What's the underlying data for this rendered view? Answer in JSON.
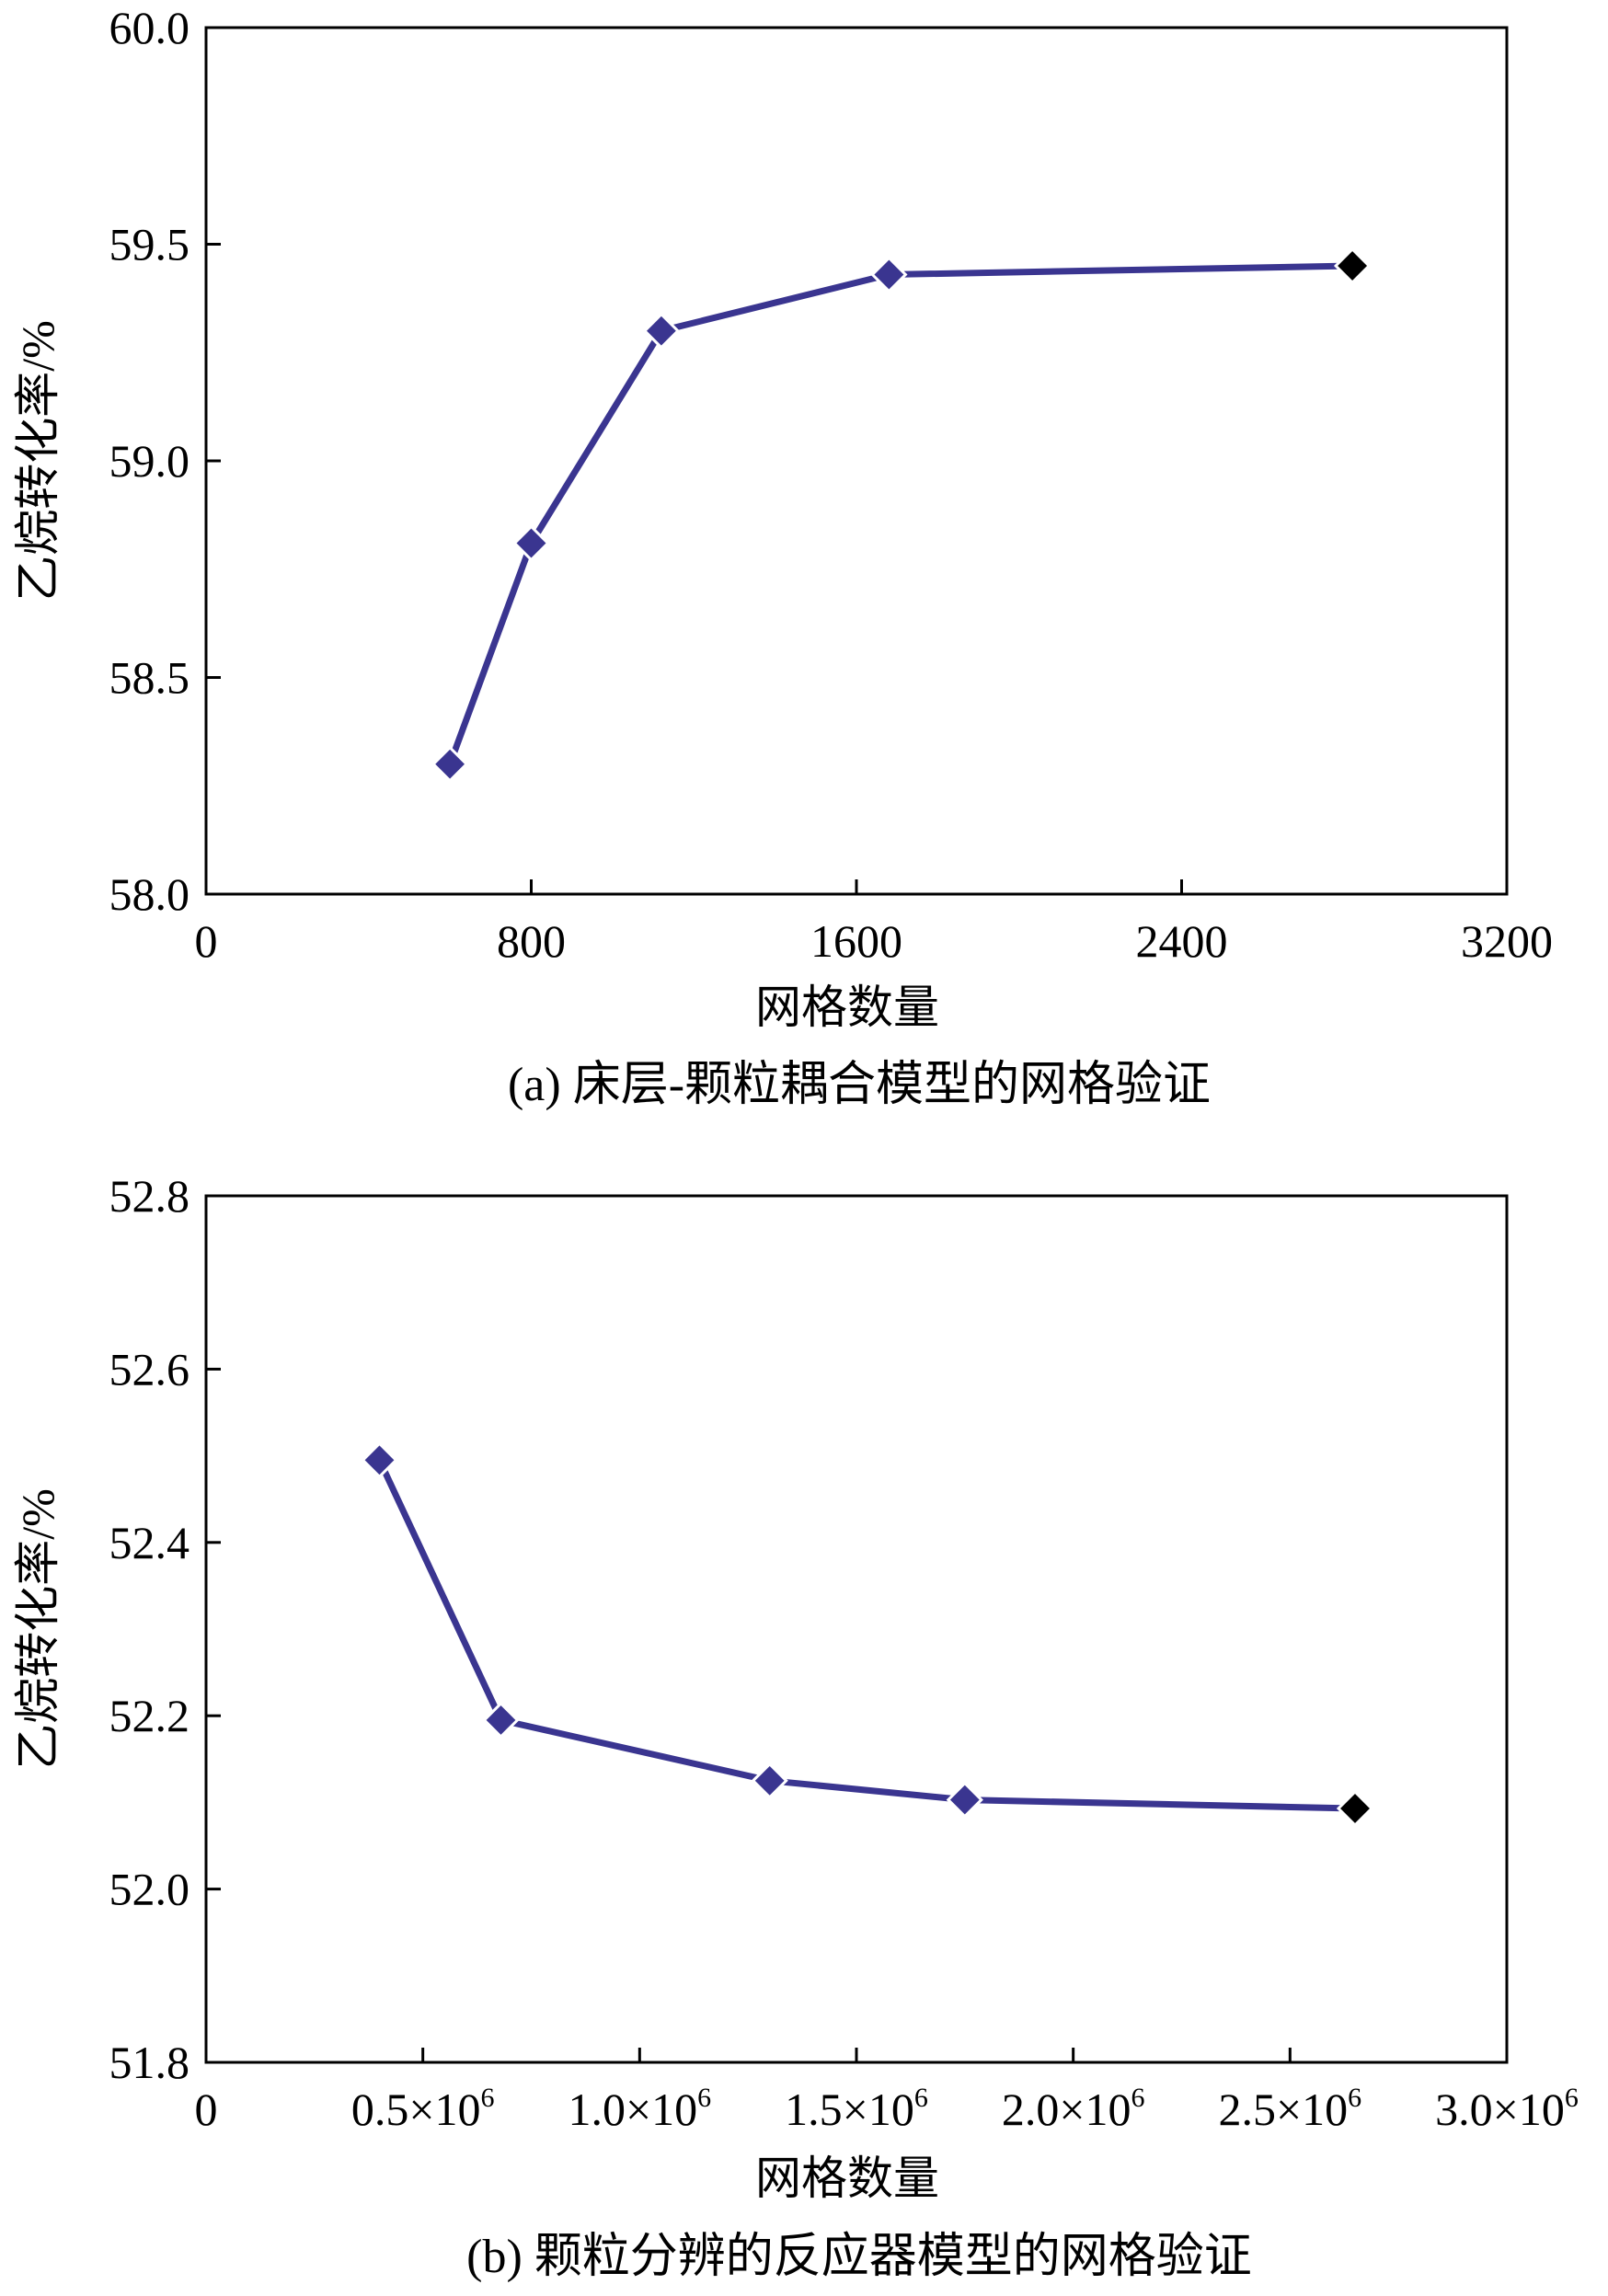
{
  "chart_data": [
    {
      "type": "line",
      "caption": "(a) 床层-颗粒耦合模型的网格验证",
      "title": "",
      "xlabel": "网格数量",
      "ylabel": "乙烷转化率/%",
      "xlim": [
        0,
        3200
      ],
      "ylim": [
        58.0,
        60.0
      ],
      "x_ticks": [
        0,
        800,
        1600,
        2400,
        3200
      ],
      "x_tick_labels": [
        {
          "base": "0",
          "sup": ""
        },
        {
          "base": "800",
          "sup": ""
        },
        {
          "base": "1600",
          "sup": ""
        },
        {
          "base": "2400",
          "sup": ""
        },
        {
          "base": "3200",
          "sup": ""
        }
      ],
      "y_ticks": [
        58.0,
        58.5,
        59.0,
        59.5,
        60.0
      ],
      "y_tick_labels": [
        "58.0",
        "58.5",
        "59.0",
        "59.5",
        "60.0"
      ],
      "grid": false,
      "series": [
        {
          "x": [
            600,
            800,
            1120,
            1680,
            2820
          ],
          "y": [
            58.3,
            58.81,
            59.3,
            59.43,
            59.45
          ],
          "color": "#3a3590",
          "marker": "diamond",
          "highlight_index": 4,
          "highlight_color": "#000000"
        }
      ]
    },
    {
      "type": "line",
      "caption": "(b) 颗粒分辨的反应器模型的网格验证",
      "title": "",
      "xlabel": "网格数量",
      "ylabel": "乙烷转化率/%",
      "xlim": [
        0,
        3000000
      ],
      "ylim": [
        51.8,
        52.8
      ],
      "x_ticks": [
        0,
        500000,
        1000000,
        1500000,
        2000000,
        2500000,
        3000000
      ],
      "x_tick_labels": [
        {
          "base": "0",
          "sup": ""
        },
        {
          "base": "0.5×10",
          "sup": "6"
        },
        {
          "base": "1.0×10",
          "sup": "6"
        },
        {
          "base": "1.5×10",
          "sup": "6"
        },
        {
          "base": "2.0×10",
          "sup": "6"
        },
        {
          "base": "2.5×10",
          "sup": "6"
        },
        {
          "base": "3.0×10",
          "sup": "6"
        }
      ],
      "y_ticks": [
        51.8,
        52.0,
        52.2,
        52.4,
        52.6,
        52.8
      ],
      "y_tick_labels": [
        "51.8",
        "52.0",
        "52.2",
        "52.4",
        "52.6",
        "52.8"
      ],
      "grid": false,
      "series": [
        {
          "x": [
            400000,
            680000,
            1300000,
            1750000,
            2650000
          ],
          "y": [
            52.495,
            52.195,
            52.125,
            52.103,
            52.093
          ],
          "color": "#3a3590",
          "marker": "diamond",
          "highlight_index": 4,
          "highlight_color": "#000000"
        }
      ]
    }
  ]
}
